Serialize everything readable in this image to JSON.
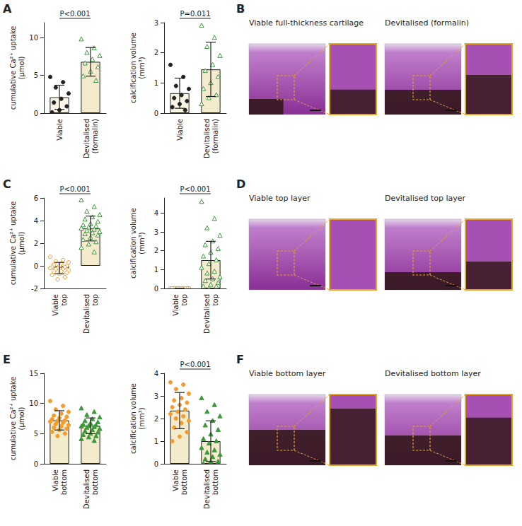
{
  "chart_data": [
    {
      "panel": "A",
      "type": "bar",
      "categories": [
        "Viable",
        "Devitalised (formalin)"
      ],
      "values": [
        2.1,
        6.8
      ],
      "errors": [
        1.6,
        1.9
      ],
      "colors": [
        "#faf5e4",
        "#f3ebcc"
      ],
      "points": [
        {
          "color": "#222222",
          "marker": "circle",
          "values": [
            4.8,
            4.1,
            3.4,
            2.6,
            1.9,
            1.4,
            0.9,
            0.4,
            0.1
          ]
        },
        {
          "color": "#3a9a3a",
          "marker": "open triangle",
          "values": [
            9.8,
            8.6,
            8.0,
            7.6,
            7.1,
            6.6,
            6.1,
            5.5,
            4.9,
            4.3
          ]
        }
      ],
      "ylabel": "cumulative Ca²⁺ uptake (µmol)",
      "ylim": [
        0,
        12
      ],
      "yticks": [
        0,
        5,
        10
      ],
      "annotation": "P<0.001"
    },
    {
      "panel": "A",
      "type": "bar",
      "categories": [
        "Viable",
        "Devitalised (formalin)"
      ],
      "values": [
        0.66,
        1.45
      ],
      "errors": [
        0.5,
        0.9
      ],
      "colors": [
        "#faf5e4",
        "#f3ebcc"
      ],
      "points": [
        {
          "color": "#222222",
          "marker": "circle",
          "values": [
            1.6,
            1.2,
            0.9,
            0.8,
            0.6,
            0.5,
            0.4,
            0.3,
            0.2,
            0.1
          ]
        },
        {
          "color": "#3a9a3a",
          "marker": "open triangle",
          "values": [
            2.9,
            2.5,
            2.2,
            1.9,
            1.6,
            1.4,
            1.2,
            1.0,
            0.8,
            0.6,
            0.5,
            0.3
          ]
        }
      ],
      "ylabel": "calcification volume (mm³)",
      "ylim": [
        0,
        3
      ],
      "yticks": [
        0,
        1,
        2,
        3
      ],
      "annotation": "P=0.011"
    },
    {
      "panel": "C",
      "type": "bar",
      "categories": [
        "Viable top",
        "Devitalised top"
      ],
      "values": [
        -0.2,
        3.3
      ],
      "errors": [
        0.5,
        1.1
      ],
      "colors": [
        "#f3ebcc",
        "#f3ebcc"
      ],
      "points": [
        {
          "color": "#f39c2b",
          "marker": "open circle",
          "values": [
            0.8,
            0.5,
            0.4,
            0.3,
            0.2,
            0.1,
            0,
            0,
            -0.1,
            -0.1,
            -0.2,
            -0.2,
            -0.3,
            -0.3,
            -0.4,
            -0.5,
            -0.5,
            -0.6,
            -0.7,
            -0.8,
            -1.0,
            -1.2
          ]
        },
        {
          "color": "#3a9a3a",
          "marker": "open triangle",
          "values": [
            5.8,
            5.2,
            4.8,
            4.5,
            4.3,
            4.1,
            3.9,
            3.7,
            3.6,
            3.5,
            3.4,
            3.3,
            3.2,
            3.1,
            3.0,
            2.9,
            2.8,
            2.7,
            2.5,
            2.3,
            2.1,
            1.9,
            1.6,
            1.2
          ]
        }
      ],
      "ylabel": "cumulative Ca²⁺ uptake (µmol)",
      "ylim": [
        -2,
        6
      ],
      "yticks": [
        -2,
        0,
        2,
        4,
        6
      ],
      "annotation": "P<0.001"
    },
    {
      "panel": "C",
      "type": "bar",
      "categories": [
        "Viable top",
        "Devitalised top"
      ],
      "values": [
        0,
        1.5
      ],
      "errors": [
        0,
        1.0
      ],
      "colors": [
        "#f3ebcc",
        "#f3ebcc"
      ],
      "points": [
        {
          "color": "#f39c2b",
          "marker": "open circle",
          "values": [
            0,
            0,
            0,
            0,
            0,
            0,
            0,
            0,
            0,
            0,
            0,
            0,
            0,
            0,
            0,
            0,
            0,
            0,
            0,
            0,
            0,
            0
          ]
        },
        {
          "color": "#3a9a3a",
          "marker": "open triangle",
          "values": [
            4.6,
            3.7,
            3.2,
            2.8,
            2.5,
            2.3,
            2.1,
            1.9,
            1.7,
            1.5,
            1.3,
            1.1,
            0.9,
            0.8,
            0.6,
            0.5,
            0.4,
            0.3,
            0.2,
            0.1,
            0.1,
            0.0
          ]
        }
      ],
      "ylabel": "calcification volume (mm³)",
      "ylim": [
        0,
        4.8
      ],
      "yticks": [
        0,
        1,
        2,
        3,
        4
      ],
      "annotation": "P<0.001"
    },
    {
      "panel": "E",
      "type": "bar",
      "categories": [
        "Viable bottom",
        "Devitalised bottom"
      ],
      "values": [
        7.2,
        6.3
      ],
      "errors": [
        1.6,
        1.3
      ],
      "colors": [
        "#f3ebcc",
        "#f3ebcc"
      ],
      "points": [
        {
          "color": "#f39c2b",
          "marker": "circle",
          "values": [
            10.4,
            9.6,
            9.0,
            8.6,
            8.3,
            8.0,
            7.8,
            7.6,
            7.4,
            7.2,
            7.1,
            7.0,
            6.8,
            6.6,
            6.4,
            6.2,
            6.0,
            5.8,
            5.6,
            5.3,
            5.0,
            4.6
          ]
        },
        {
          "color": "#3a9a3a",
          "marker": "triangle",
          "values": [
            9.2,
            8.6,
            8.1,
            7.7,
            7.4,
            7.1,
            6.9,
            6.7,
            6.5,
            6.4,
            6.3,
            6.2,
            6.1,
            6.0,
            5.8,
            5.6,
            5.4,
            5.2,
            5.0,
            4.8,
            4.6,
            4.4,
            4.1,
            3.8
          ]
        }
      ],
      "ylabel": "cumulative Ca²⁺ uptake (µmol)",
      "ylim": [
        0,
        15
      ],
      "yticks": [
        0,
        5,
        10,
        15
      ]
    },
    {
      "panel": "E",
      "type": "bar",
      "categories": [
        "Viable bottom",
        "Devitalised bottom"
      ],
      "values": [
        2.35,
        1.0
      ],
      "errors": [
        0.8,
        0.9
      ],
      "colors": [
        "#f3ebcc",
        "#f3ebcc"
      ],
      "points": [
        {
          "color": "#f39c2b",
          "marker": "circle",
          "values": [
            3.6,
            3.5,
            3.3,
            3.1,
            2.9,
            2.8,
            2.7,
            2.6,
            2.5,
            2.4,
            2.3,
            2.2,
            2.1,
            2.0,
            1.9,
            1.8,
            1.6,
            1.4,
            1.2,
            1.0
          ]
        },
        {
          "color": "#3a9a3a",
          "marker": "triangle",
          "values": [
            2.9,
            2.6,
            2.3,
            2.1,
            1.9,
            1.7,
            1.5,
            1.3,
            1.1,
            1.0,
            0.9,
            0.7,
            0.6,
            0.5,
            0.4,
            0.3,
            0.2,
            0.1,
            0.1,
            0.0
          ]
        }
      ],
      "ylabel": "calcification volume (mm³)",
      "ylim": [
        0,
        4
      ],
      "yticks": [
        0,
        1,
        2,
        3,
        4
      ],
      "annotation": "P<0.001"
    }
  ],
  "images": [
    {
      "panel": "B",
      "titles": [
        "Viable full-thickness cartilage",
        "Devitalised (formalin)"
      ]
    },
    {
      "panel": "D",
      "titles": [
        "Viable top layer",
        "Devitalised top layer"
      ]
    },
    {
      "panel": "F",
      "titles": [
        "Viable bottom layer",
        "Devitalised bottom layer"
      ]
    }
  ]
}
